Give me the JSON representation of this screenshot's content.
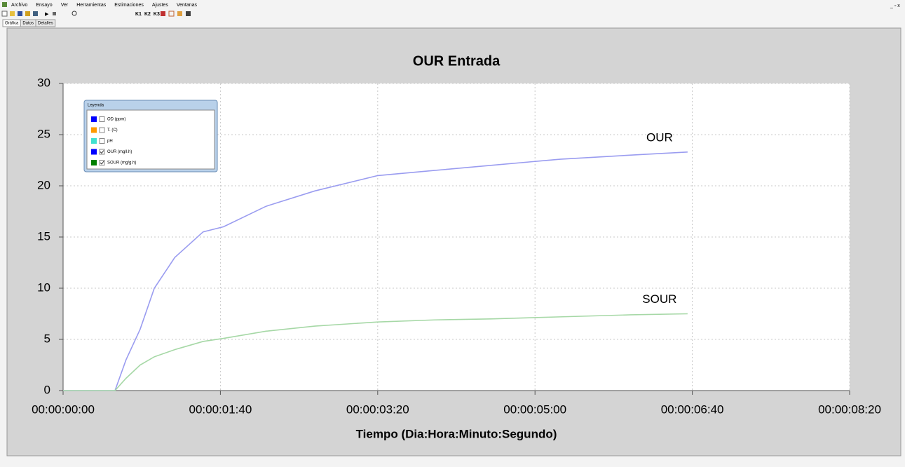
{
  "menu": [
    "Archivo",
    "Ensayo",
    "Ver",
    "Herramientas",
    "Estimaciones",
    "Ajustes",
    "Ventanas"
  ],
  "toolbar": [
    "K1",
    "K2",
    "K3"
  ],
  "tabs": [
    "Gráfica",
    "Datos",
    "Detalles"
  ],
  "chart_data": {
    "type": "line",
    "title": "OUR Entrada",
    "x_label": "Tiempo (Dia:Hora:Minuto:Segundo)",
    "x": [
      0,
      30,
      33,
      40,
      49,
      58,
      71,
      89,
      102,
      129,
      160,
      200,
      236,
      272,
      316,
      361,
      397
    ],
    "series": [
      {
        "name": "OUR",
        "color": "#9a9cf0",
        "values": [
          0,
          0,
          0,
          3,
          6,
          10,
          13,
          15.5,
          16,
          18,
          19.5,
          21,
          21.5,
          22,
          22.6,
          23,
          23.3
        ]
      },
      {
        "name": "SOUR",
        "color": "#a6d8a6",
        "values": [
          0,
          0,
          0,
          1.2,
          2.5,
          3.3,
          4,
          4.8,
          5.1,
          5.8,
          6.3,
          6.7,
          6.9,
          7,
          7.2,
          7.4,
          7.5
        ]
      }
    ],
    "xlim": [
      0,
      500
    ],
    "xticks": [
      {
        "value": 0,
        "label": "00:00:00:00"
      },
      {
        "value": 100,
        "label": "00:00:01:40"
      },
      {
        "value": 200,
        "label": "00:00:03:20"
      },
      {
        "value": 300,
        "label": "00:00:05:00"
      },
      {
        "value": 400,
        "label": "00:00:06:40"
      },
      {
        "value": 500,
        "label": "00:00:08:20"
      }
    ],
    "ylim": [
      0,
      30
    ],
    "yticks": [
      0,
      5,
      10,
      15,
      20,
      25,
      30
    ],
    "grid": true,
    "legend": {
      "title": "Leyenda",
      "items": [
        {
          "name": "OD (ppm)",
          "color": "#0000ff",
          "checked": false
        },
        {
          "name": "T. (C)",
          "color": "#ff9900",
          "checked": false
        },
        {
          "name": "pH",
          "color": "#40e0d0",
          "checked": false
        },
        {
          "name": "OUR (mg/l.h)",
          "color": "#0000ff",
          "checked": true
        },
        {
          "name": "SOUR (mg/g.h)",
          "color": "#008000",
          "checked": true
        }
      ]
    }
  }
}
